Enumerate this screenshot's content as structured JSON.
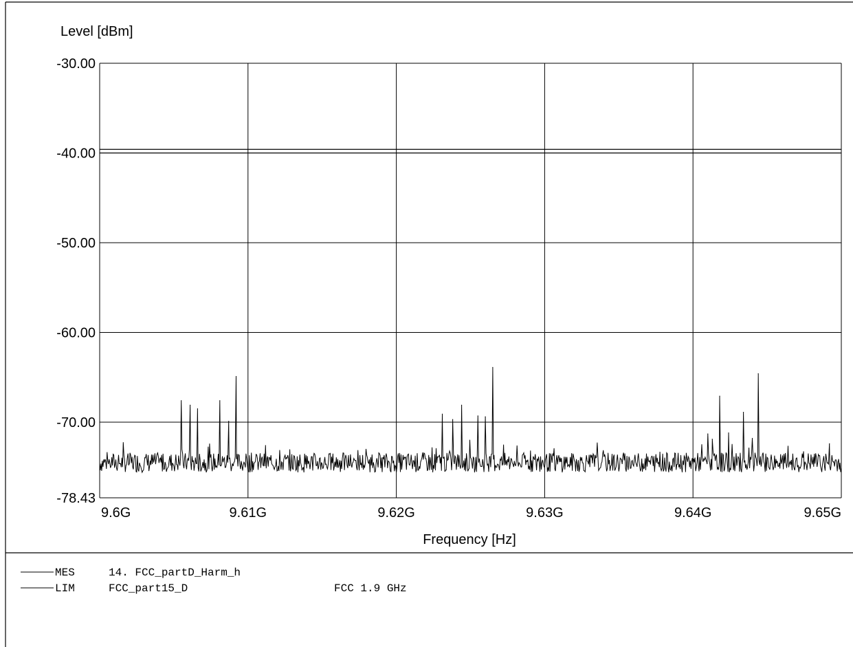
{
  "chart_data": {
    "type": "line",
    "ylabel": "Level [dBm]",
    "xlabel": "Frequency [Hz]",
    "xlim": [
      9600000000,
      9650000000
    ],
    "ylim": [
      -78.43,
      -30.0
    ],
    "grid": true,
    "x_ticks": [
      9600000000,
      9610000000,
      9620000000,
      9630000000,
      9640000000,
      9650000000
    ],
    "x_tick_labels": [
      "9.6G",
      "9.61G",
      "9.62G",
      "9.63G",
      "9.64G",
      "9.65G"
    ],
    "y_ticks": [
      -30.0,
      -40.0,
      -50.0,
      -60.0,
      -70.0,
      -78.43
    ],
    "y_tick_labels": [
      "-30.00",
      "-40.00",
      "-50.00",
      "-60.00",
      "-70.00",
      "-78.43"
    ],
    "series": [
      {
        "name": "FCC_part15_D",
        "kind": "limit",
        "x": [
          9600000000,
          9650000000
        ],
        "y": [
          -39.6,
          -39.6
        ]
      },
      {
        "name": "FCC_part15_D",
        "kind": "limit",
        "x": [
          9600000000,
          9650000000
        ],
        "y": [
          -40.0,
          -40.0
        ]
      },
      {
        "name": "14. FCC_partD_Harm_h",
        "kind": "measurement",
        "noise_floor": -74.5,
        "peaks": [
          {
            "x": 9605500000,
            "y": -67.6
          },
          {
            "x": 9606100000,
            "y": -68.1
          },
          {
            "x": 9606600000,
            "y": -68.5
          },
          {
            "x": 9608100000,
            "y": -67.6
          },
          {
            "x": 9608700000,
            "y": -69.9
          },
          {
            "x": 9609200000,
            "y": -64.9
          },
          {
            "x": 9623100000,
            "y": -69.1
          },
          {
            "x": 9623800000,
            "y": -69.7
          },
          {
            "x": 9624400000,
            "y": -68.1
          },
          {
            "x": 9625500000,
            "y": -69.3
          },
          {
            "x": 9626000000,
            "y": -69.4
          },
          {
            "x": 9626500000,
            "y": -63.9
          },
          {
            "x": 9641000000,
            "y": -71.3
          },
          {
            "x": 9641300000,
            "y": -71.9
          },
          {
            "x": 9641800000,
            "y": -67.1
          },
          {
            "x": 9642400000,
            "y": -71.2
          },
          {
            "x": 9643400000,
            "y": -68.9
          },
          {
            "x": 9644000000,
            "y": -71.8
          },
          {
            "x": 9644400000,
            "y": -64.6
          },
          {
            "x": 9649200000,
            "y": -72.4
          }
        ]
      }
    ]
  },
  "legend": [
    {
      "tag": "MES",
      "name": "14. FCC_partD_Harm_h",
      "note": ""
    },
    {
      "tag": "LIM",
      "name": "FCC_part15_D",
      "note": "FCC 1.9 GHz"
    }
  ],
  "colors": {
    "line": "#000000",
    "background": "#ffffff"
  }
}
